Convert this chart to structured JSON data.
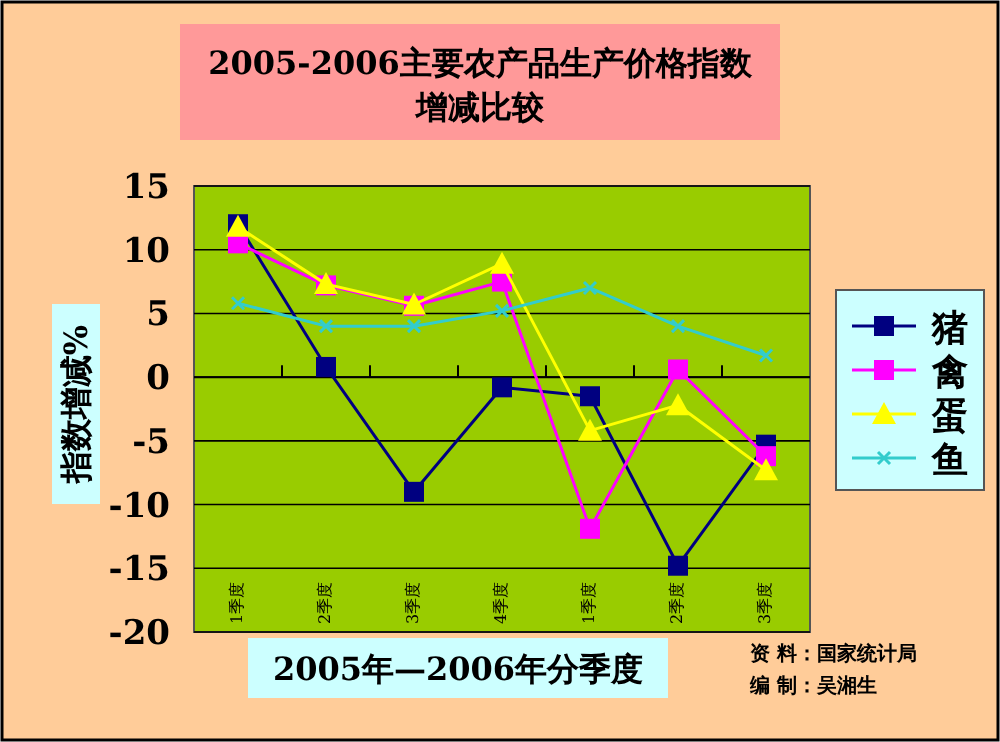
{
  "chart_data": {
    "type": "line",
    "title": "2005-2006主要农产品生产价格指数增减比较",
    "xlabel": "2005年—2006年分季度",
    "ylabel": "指数增减%",
    "categories": [
      "1季度",
      "2季度",
      "3季度",
      "4季度",
      "1季度",
      "2季度",
      "3季度"
    ],
    "series": [
      {
        "name": "猪",
        "color": "#000080",
        "marker": "square",
        "values": [
          12,
          0.8,
          -9,
          -0.8,
          -1.5,
          -14.8,
          -5.3
        ]
      },
      {
        "name": "禽",
        "color": "#ff00ff",
        "marker": "square",
        "values": [
          10.5,
          7.2,
          5.6,
          7.5,
          -11.9,
          0.6,
          -6.2
        ]
      },
      {
        "name": "蛋",
        "color": "#ffff00",
        "marker": "triangle",
        "values": [
          11.8,
          7.3,
          5.7,
          8.9,
          -4.2,
          -2.2,
          -7.3
        ]
      },
      {
        "name": "鱼",
        "color": "#33cccc",
        "marker": "cross",
        "values": [
          5.8,
          4,
          4,
          5.2,
          7,
          4,
          1.7
        ]
      }
    ],
    "ylim": [
      -20,
      15
    ],
    "yticks": [
      -20,
      -15,
      -10,
      -5,
      0,
      5,
      10,
      15
    ],
    "grid": "y",
    "legend": "right",
    "annotations": [
      "资 料：国家统计局",
      "编 制：吴湘生"
    ]
  }
}
